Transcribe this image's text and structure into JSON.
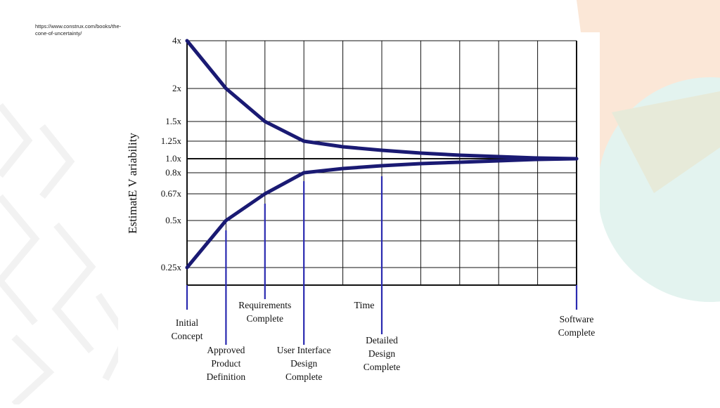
{
  "source_url": "https://www.construx.com/books/the-cone-of-uncertainty/",
  "colors": {
    "curve": "#1a1a73",
    "marker": "#2a2ab0",
    "grid": "#111111",
    "bg_peach": "#fbe7d7",
    "bg_mint": "#e3f3ef",
    "bg_sage": "#e7ead9"
  },
  "chart_data": {
    "type": "line",
    "ylabel": "EstimatE V ariability",
    "xlabel": "Time",
    "y_ticks": [
      {
        "label": "4x",
        "value": 4
      },
      {
        "label": "2x",
        "value": 2
      },
      {
        "label": "1.5x",
        "value": 1.5
      },
      {
        "label": "1.25x",
        "value": 1.25
      },
      {
        "label": "1.0x",
        "value": 1.0
      },
      {
        "label": "0.8x",
        "value": 0.8
      },
      {
        "label": "0.67x",
        "value": 0.67
      },
      {
        "label": "0.5x",
        "value": 0.5
      },
      {
        "label": "0.25x",
        "value": 0.25
      }
    ],
    "milestones": [
      {
        "label": [
          "Initial",
          "Concept"
        ],
        "x": 0
      },
      {
        "label": [
          "Approved",
          "Product",
          "Definition"
        ],
        "x": 1
      },
      {
        "label": [
          "Requirements",
          "Complete"
        ],
        "x": 2
      },
      {
        "label": [
          "User Interface",
          "Design",
          "Complete"
        ],
        "x": 3
      },
      {
        "label": [
          "Detailed",
          "Design",
          "Complete"
        ],
        "x": 5
      },
      {
        "label": [
          "Software",
          "Complete"
        ],
        "x": 10
      }
    ],
    "series": [
      {
        "points": [
          [
            0,
            4
          ],
          [
            1,
            2
          ],
          [
            2,
            1.5
          ],
          [
            3,
            1.25
          ],
          [
            4,
            1.17
          ],
          [
            5,
            1.12
          ],
          [
            6,
            1.08
          ],
          [
            7,
            1.05
          ],
          [
            8,
            1.03
          ],
          [
            9,
            1.01
          ],
          [
            10,
            1.0
          ]
        ]
      },
      {
        "points": [
          [
            0,
            0.25
          ],
          [
            1,
            0.5
          ],
          [
            2,
            0.67
          ],
          [
            3,
            0.8
          ],
          [
            4,
            0.86
          ],
          [
            5,
            0.9
          ],
          [
            6,
            0.93
          ],
          [
            7,
            0.95
          ],
          [
            8,
            0.97
          ],
          [
            9,
            0.99
          ],
          [
            10,
            1.0
          ]
        ]
      }
    ],
    "x_range": [
      0,
      10
    ],
    "vertical_gridlines": 11,
    "grid": true
  }
}
